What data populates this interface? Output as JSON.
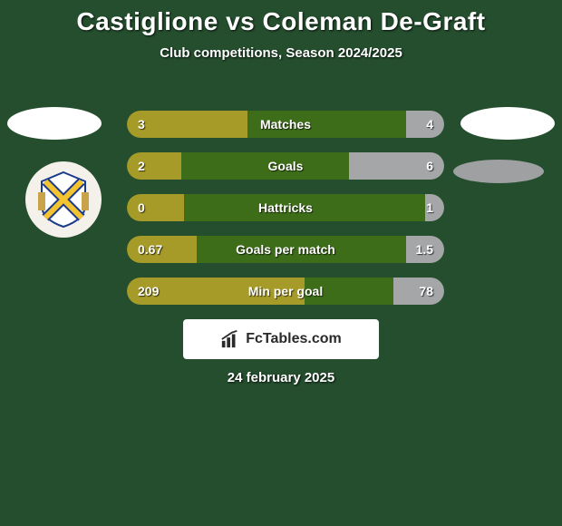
{
  "colors": {
    "bg": "#244e2e",
    "text": "#ffffff",
    "bar_track": "#3d6d18",
    "bar_left": "#a69b28",
    "bar_right": "#a4a6a8",
    "logo_white": "#ffffff",
    "logo_grey": "#9ea0a2",
    "brand_bg": "#ffffff",
    "brand_text": "#2a2a2a"
  },
  "title": "Castiglione vs Coleman De-Graft",
  "subtitle": "Club competitions, Season 2024/2025",
  "date_text": "24 february 2025",
  "brand": "FcTables.com",
  "bars": [
    {
      "label": "Matches",
      "left_val": "3",
      "right_val": "4",
      "left_pct": 38,
      "right_pct": 12
    },
    {
      "label": "Goals",
      "left_val": "2",
      "right_val": "6",
      "left_pct": 17,
      "right_pct": 30
    },
    {
      "label": "Hattricks",
      "left_val": "0",
      "right_val": "1",
      "left_pct": 18,
      "right_pct": 6
    },
    {
      "label": "Goals per match",
      "left_val": "0.67",
      "right_val": "1.5",
      "left_pct": 22,
      "right_pct": 12
    },
    {
      "label": "Min per goal",
      "left_val": "209",
      "right_val": "78",
      "left_pct": 56,
      "right_pct": 16
    }
  ]
}
